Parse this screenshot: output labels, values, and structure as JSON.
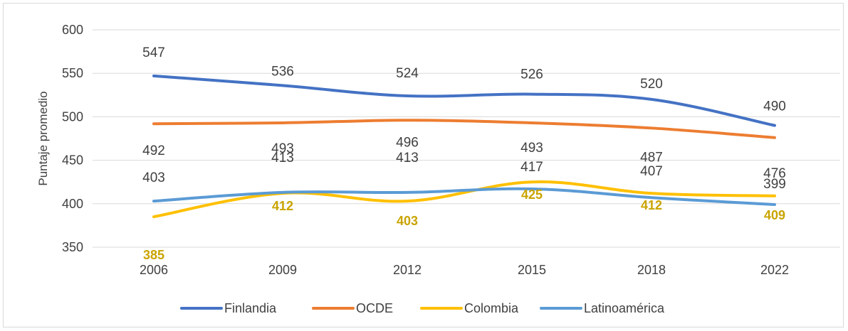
{
  "chart_data": {
    "type": "line",
    "title": "",
    "xlabel": "",
    "ylabel": "Puntaje promedio",
    "categories": [
      "2006",
      "2009",
      "2012",
      "2015",
      "2018",
      "2022"
    ],
    "ylim": [
      350,
      600
    ],
    "yticks": [
      "350",
      "400",
      "450",
      "500",
      "550",
      "600"
    ],
    "grid": true,
    "legend_position": "bottom",
    "series": [
      {
        "name": "Finlandia",
        "color": "#4472C4",
        "values": [
          547,
          536,
          524,
          526,
          520,
          490
        ],
        "labels": [
          "547",
          "536",
          "524",
          "526",
          "520",
          "490"
        ]
      },
      {
        "name": "OCDE",
        "color": "#ED7D31",
        "values": [
          492,
          493,
          496,
          493,
          487,
          476
        ],
        "labels": [
          "492",
          "493",
          "496",
          "493",
          "487",
          "476"
        ]
      },
      {
        "name": "Colombia",
        "color": "#FFC000",
        "values": [
          385,
          412,
          403,
          425,
          412,
          409
        ],
        "labels": [
          "385",
          "412",
          "403",
          "425",
          "412",
          "409"
        ]
      },
      {
        "name": "Latinoamérica",
        "color": "#5B9BD5",
        "values": [
          403,
          413,
          413,
          417,
          407,
          399
        ],
        "labels": [
          "403",
          "413",
          "413",
          "417",
          "407",
          "399"
        ]
      }
    ]
  }
}
